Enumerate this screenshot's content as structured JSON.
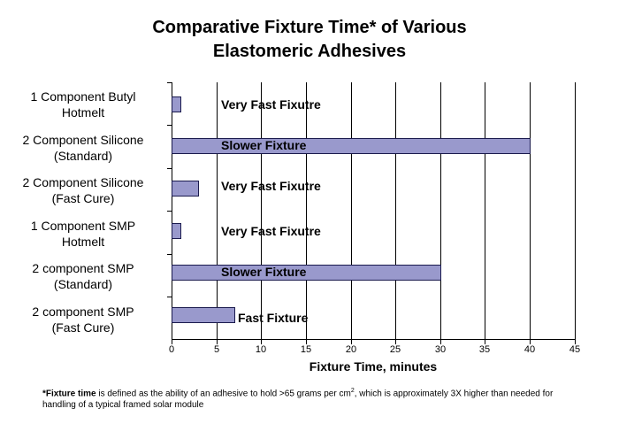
{
  "chart_data": {
    "type": "bar",
    "orientation": "horizontal",
    "title": "Comparative Fixture Time* of Various Elastomeric Adhesives",
    "title_lines": [
      "Comparative Fixture Time* of Various",
      "Elastomeric Adhesives"
    ],
    "xlabel": "Fixture Time, minutes",
    "ylabel": "",
    "xlim": [
      0,
      45
    ],
    "xticks": [
      "0",
      "5",
      "10",
      "15",
      "20",
      "25",
      "30",
      "35",
      "40",
      "45"
    ],
    "grid": "vertical",
    "legend": "none",
    "bar_color": "#9999cc",
    "categories": [
      {
        "line1": "1 Component Butyl",
        "line2": "Hotmelt"
      },
      {
        "line1": "2 Component Silicone",
        "line2": "(Standard)"
      },
      {
        "line1": "2 Component Silicone",
        "line2": "(Fast Cure)"
      },
      {
        "line1": "1 Component SMP",
        "line2": "Hotmelt"
      },
      {
        "line1": "2 component SMP",
        "line2": "(Standard)"
      },
      {
        "line1": "2 component SMP",
        "line2": "(Fast Cure)"
      }
    ],
    "values": [
      1,
      40,
      3,
      1,
      30,
      7
    ],
    "annotations": [
      "Very Fast Fixutre",
      "Slower Fixture",
      "Very Fast Fixutre",
      "Very Fast Fixutre",
      "Slower Fixture",
      "Fast Fixture"
    ]
  },
  "footnote": {
    "bold_part": "*Fixture time",
    "text_before_sup": " is defined as the ability of an adhesive to hold >65 grams per cm",
    "sup": "2",
    "text_after_sup": ", which is approximately 3X higher than needed for handling of a typical framed solar module"
  }
}
